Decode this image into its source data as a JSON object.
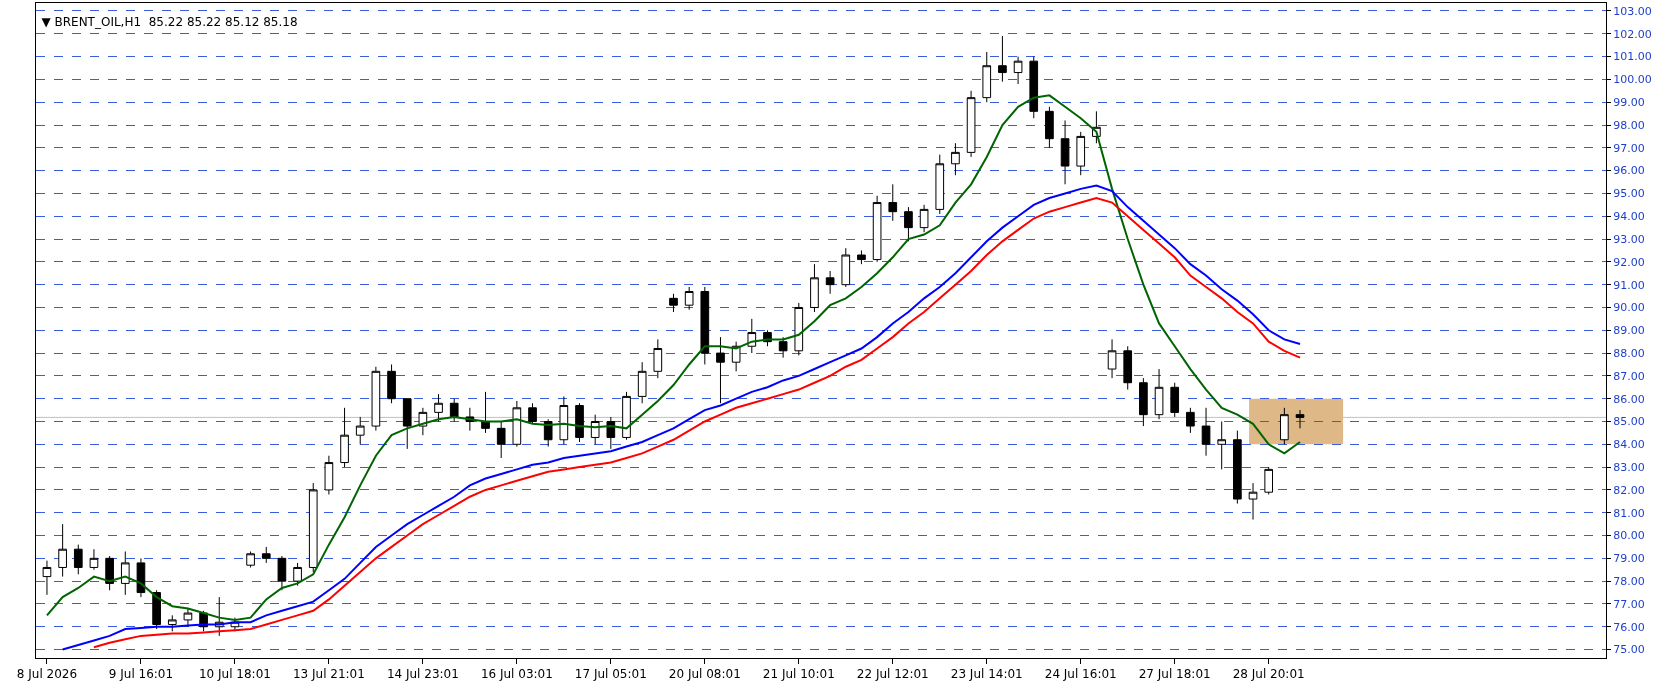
{
  "chart_data": {
    "type": "candlestick",
    "title": "▼ BRENT_OIL,H1  85.22 85.22 85.12 85.18",
    "categories": [
      "8 Jul 2026",
      null,
      null,
      null,
      null,
      null,
      "9 Jul 16:01",
      null,
      null,
      null,
      null,
      null,
      "10 Jul 18:01",
      null,
      null,
      null,
      null,
      null,
      "13 Jul 21:01",
      null,
      null,
      null,
      null,
      null,
      "14 Jul 23:01",
      null,
      null,
      null,
      null,
      null,
      "16 Jul 03:01",
      null,
      null,
      null,
      null,
      null,
      "17 Jul 05:01",
      null,
      null,
      null,
      null,
      null,
      "20 Jul 08:01",
      null,
      null,
      null,
      null,
      null,
      "21 Jul 10:01",
      null,
      null,
      null,
      null,
      null,
      "22 Jul 12:01",
      null,
      null,
      null,
      null,
      null,
      "23 Jul 14:01",
      null,
      null,
      null,
      null,
      null,
      "24 Jul 16:01",
      null,
      null,
      null,
      null,
      null,
      "27 Jul 18:01",
      null,
      null,
      null,
      null,
      null,
      "28 Jul 20:01",
      null,
      null
    ],
    "color": "#000000",
    "ohlc": [
      [
        78.2,
        78.9,
        77.4,
        78.6
      ],
      [
        78.6,
        80.5,
        78.2,
        79.4
      ],
      [
        79.4,
        79.6,
        78.3,
        78.6
      ],
      [
        78.6,
        79.4,
        78.5,
        79.0
      ],
      [
        79.0,
        79.1,
        77.6,
        77.9
      ],
      [
        77.9,
        79.3,
        77.4,
        78.8
      ],
      [
        78.8,
        79.0,
        77.3,
        77.5
      ],
      [
        77.5,
        77.6,
        75.9,
        76.1
      ],
      [
        76.1,
        76.5,
        75.8,
        76.3
      ],
      [
        76.3,
        76.8,
        76.0,
        76.6
      ],
      [
        76.6,
        76.7,
        75.8,
        76.0
      ],
      [
        76.0,
        77.3,
        75.6,
        76.2
      ],
      [
        76.0,
        76.4,
        75.8,
        76.2
      ],
      [
        78.7,
        79.3,
        78.6,
        79.2
      ],
      [
        79.2,
        79.5,
        78.8,
        79.0
      ],
      [
        79.0,
        79.1,
        77.6,
        78.0
      ],
      [
        78.0,
        78.8,
        77.8,
        78.6
      ],
      [
        78.6,
        82.3,
        78.4,
        82.0
      ],
      [
        82.0,
        83.5,
        81.8,
        83.2
      ],
      [
        83.2,
        85.6,
        83.0,
        84.4
      ],
      [
        84.4,
        85.2,
        84.0,
        84.8
      ],
      [
        84.8,
        87.4,
        84.6,
        87.2
      ],
      [
        87.2,
        87.5,
        85.8,
        86.0
      ],
      [
        86.0,
        86.0,
        83.8,
        84.8
      ],
      [
        84.8,
        85.6,
        84.4,
        85.4
      ],
      [
        85.4,
        86.2,
        85.0,
        85.8
      ],
      [
        85.8,
        86.0,
        85.0,
        85.2
      ],
      [
        85.2,
        85.6,
        84.6,
        85.0
      ],
      [
        85.0,
        86.3,
        84.5,
        84.7
      ],
      [
        84.7,
        85.0,
        83.4,
        84.0
      ],
      [
        84.0,
        85.9,
        83.9,
        85.6
      ],
      [
        85.6,
        85.8,
        84.9,
        85.0
      ],
      [
        85.0,
        85.1,
        83.9,
        84.2
      ],
      [
        84.2,
        86.1,
        84.0,
        85.7
      ],
      [
        85.7,
        85.8,
        84.1,
        84.3
      ],
      [
        84.3,
        85.3,
        84.0,
        85.0
      ],
      [
        85.0,
        85.2,
        83.8,
        84.3
      ],
      [
        84.3,
        86.3,
        84.2,
        86.1
      ],
      [
        86.1,
        87.6,
        85.8,
        87.2
      ],
      [
        87.2,
        88.6,
        86.9,
        88.2
      ],
      [
        90.4,
        90.6,
        89.8,
        90.1
      ],
      [
        90.1,
        90.9,
        89.9,
        90.7
      ],
      [
        90.7,
        90.9,
        87.5,
        88.0
      ],
      [
        88.0,
        88.7,
        85.8,
        87.6
      ],
      [
        87.6,
        88.5,
        87.2,
        88.3
      ],
      [
        88.3,
        89.5,
        88.0,
        88.9
      ],
      [
        88.9,
        89.0,
        88.3,
        88.5
      ],
      [
        88.5,
        88.7,
        87.8,
        88.1
      ],
      [
        88.1,
        90.2,
        87.9,
        90.0
      ],
      [
        90.0,
        91.9,
        89.8,
        91.3
      ],
      [
        91.3,
        91.6,
        90.6,
        91.0
      ],
      [
        91.0,
        92.6,
        90.9,
        92.3
      ],
      [
        92.3,
        92.5,
        91.9,
        92.1
      ],
      [
        92.1,
        94.9,
        92.0,
        94.6
      ],
      [
        94.6,
        95.4,
        93.8,
        94.2
      ],
      [
        94.2,
        94.4,
        92.9,
        93.5
      ],
      [
        93.5,
        94.5,
        93.3,
        94.3
      ],
      [
        94.3,
        96.7,
        94.1,
        96.3
      ],
      [
        96.3,
        97.2,
        95.8,
        96.8
      ],
      [
        96.8,
        99.5,
        96.6,
        99.2
      ],
      [
        99.2,
        101.2,
        99.0,
        100.6
      ],
      [
        100.6,
        101.9,
        99.9,
        100.3
      ],
      [
        100.3,
        101.0,
        99.8,
        100.8
      ],
      [
        100.8,
        101.0,
        98.3,
        98.6
      ],
      [
        98.6,
        98.8,
        97.0,
        97.4
      ],
      [
        97.4,
        98.2,
        95.4,
        96.2
      ],
      [
        96.2,
        97.7,
        95.8,
        97.5
      ],
      [
        97.5,
        98.6,
        97.2,
        97.9
      ],
      [
        87.3,
        88.6,
        86.9,
        88.1
      ],
      [
        88.1,
        88.3,
        86.4,
        86.7
      ],
      [
        86.7,
        86.9,
        84.8,
        85.3
      ],
      [
        85.3,
        87.3,
        85.1,
        86.5
      ],
      [
        86.5,
        86.7,
        85.2,
        85.4
      ],
      [
        85.4,
        85.6,
        84.5,
        84.8
      ],
      [
        84.8,
        85.6,
        83.5,
        84.0
      ],
      [
        84.0,
        85.0,
        82.9,
        84.2
      ],
      [
        84.2,
        84.6,
        81.4,
        81.6
      ],
      [
        81.6,
        82.3,
        80.7,
        81.9
      ],
      [
        81.9,
        83.0,
        81.8,
        82.9
      ],
      [
        84.2,
        85.6,
        84.0,
        85.3
      ],
      [
        85.3,
        85.5,
        84.7,
        85.18
      ]
    ],
    "series": [
      {
        "type": "line",
        "color": "#006400",
        "values": [
          76.5,
          77.3,
          77.7,
          78.2,
          78.0,
          78.2,
          77.9,
          77.3,
          76.9,
          76.8,
          76.6,
          76.4,
          76.3,
          76.4,
          77.2,
          77.7,
          77.9,
          78.3,
          79.6,
          80.8,
          82.2,
          83.5,
          84.4,
          84.7,
          84.9,
          85.1,
          85.2,
          85.1,
          85.0,
          85.0,
          85.1,
          84.9,
          84.85,
          84.9,
          84.8,
          84.75,
          84.8,
          84.7,
          85.3,
          85.9,
          86.6,
          87.5,
          88.3,
          88.3,
          88.2,
          88.5,
          88.6,
          88.6,
          88.8,
          89.4,
          90.1,
          90.4,
          90.9,
          91.5,
          92.2,
          93.0,
          93.2,
          93.6,
          94.6,
          95.4,
          96.6,
          98.0,
          98.8,
          99.2,
          99.3,
          98.8,
          98.3,
          97.7,
          95.2,
          93.0,
          91.0,
          89.3,
          88.3,
          87.3,
          86.4,
          85.6,
          85.3,
          84.9,
          84.0,
          83.6,
          84.1
        ]
      },
      {
        "type": "line",
        "color": "#0000ff",
        "values": [
          null,
          75.0,
          75.2,
          75.4,
          75.6,
          75.9,
          75.95,
          76.0,
          76.0,
          76.05,
          76.1,
          76.1,
          76.2,
          76.2,
          76.5,
          76.7,
          76.9,
          77.1,
          77.6,
          78.1,
          78.8,
          79.5,
          80.0,
          80.5,
          80.9,
          81.3,
          81.7,
          82.2,
          82.5,
          82.7,
          82.9,
          83.1,
          83.2,
          83.4,
          83.5,
          83.6,
          83.7,
          83.9,
          84.1,
          84.4,
          84.7,
          85.1,
          85.5,
          85.7,
          86.0,
          86.3,
          86.5,
          86.8,
          87.0,
          87.3,
          87.6,
          87.9,
          88.2,
          88.7,
          89.3,
          89.8,
          90.4,
          90.9,
          91.5,
          92.2,
          92.9,
          93.5,
          94.0,
          94.5,
          94.8,
          95.0,
          95.2,
          95.35,
          95.1,
          94.4,
          93.8,
          93.2,
          92.6,
          91.9,
          91.4,
          90.8,
          90.3,
          89.7,
          89.0,
          88.6,
          88.4
        ]
      },
      {
        "type": "line",
        "color": "#ff0000",
        "values": [
          null,
          null,
          null,
          75.1,
          75.3,
          75.45,
          75.6,
          75.65,
          75.7,
          75.7,
          75.75,
          75.8,
          75.85,
          75.9,
          76.1,
          76.3,
          76.5,
          76.7,
          77.2,
          77.8,
          78.4,
          79.0,
          79.5,
          80.0,
          80.5,
          80.9,
          81.3,
          81.7,
          82.0,
          82.2,
          82.4,
          82.6,
          82.8,
          82.9,
          83.0,
          83.1,
          83.2,
          83.4,
          83.6,
          83.9,
          84.2,
          84.6,
          85.0,
          85.3,
          85.6,
          85.8,
          86.0,
          86.2,
          86.4,
          86.7,
          87.0,
          87.4,
          87.7,
          88.2,
          88.7,
          89.3,
          89.8,
          90.4,
          91.0,
          91.6,
          92.3,
          92.9,
          93.4,
          93.9,
          94.2,
          94.4,
          94.6,
          94.8,
          94.6,
          94.0,
          93.4,
          92.8,
          92.2,
          91.4,
          90.9,
          90.4,
          89.8,
          89.3,
          88.5,
          88.1,
          87.8
        ]
      }
    ],
    "ylim": [
      74.63,
      103.35
    ],
    "yticks": [
      {
        "value": 75,
        "label": "75.00"
      },
      {
        "value": 76,
        "label": "76.00"
      },
      {
        "value": 77,
        "label": "77.00"
      },
      {
        "value": 78,
        "label": "78.00"
      },
      {
        "value": 79,
        "label": "79.00"
      },
      {
        "value": 80,
        "label": "80.00"
      },
      {
        "value": 81,
        "label": "81.00"
      },
      {
        "value": 82,
        "label": "82.00"
      },
      {
        "value": 83,
        "label": "83.00"
      },
      {
        "value": 84,
        "label": "84.00"
      },
      {
        "value": 85,
        "label": "85.00"
      },
      {
        "value": 86,
        "label": "86.00"
      },
      {
        "value": 87,
        "label": "87.00"
      },
      {
        "value": 88,
        "label": "88.00"
      },
      {
        "value": 89,
        "label": "89.00"
      },
      {
        "value": 90,
        "label": "90.00"
      },
      {
        "value": 91,
        "label": "91.00"
      },
      {
        "value": 92,
        "label": "92.00"
      },
      {
        "value": 93,
        "label": "93.00"
      },
      {
        "value": 94,
        "label": "94.00"
      },
      {
        "value": 95,
        "label": "95.00"
      },
      {
        "value": 96,
        "label": "96.00"
      },
      {
        "value": 97,
        "label": "97.00"
      },
      {
        "value": 98,
        "label": "98.00"
      },
      {
        "value": 99,
        "label": "99.00"
      },
      {
        "value": 100,
        "label": "100.00"
      },
      {
        "value": 101,
        "label": "101.00"
      },
      {
        "value": 102,
        "label": "102.00"
      },
      {
        "value": 103,
        "label": "103.00"
      }
    ],
    "ref_lines": [
      {
        "axis": "y",
        "value": 85.18,
        "color": "#c0c0c0"
      }
    ],
    "bands": [
      {
        "axis": "y",
        "from": 84,
        "to": 86,
        "color": "#deb887"
      }
    ],
    "grid": "y"
  }
}
